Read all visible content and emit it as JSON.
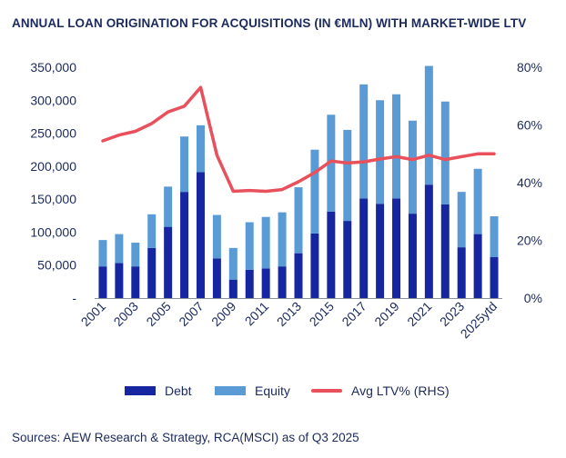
{
  "chart_data": {
    "type": "bar",
    "stacked": true,
    "title": "ANNUAL LOAN ORIGINATION FOR ACQUISITIONS (IN €MLN) WITH MARKET-WIDE LTV",
    "categories": [
      "2001",
      "2002",
      "2003",
      "2004",
      "2005",
      "2006",
      "2007",
      "2008",
      "2009",
      "2010",
      "2011",
      "2012",
      "2013",
      "2014",
      "2015",
      "2016",
      "2017",
      "2018",
      "2019",
      "2020",
      "2021",
      "2022",
      "2023",
      "2024",
      "2025ytd"
    ],
    "x_tick_labels": [
      "2001",
      "2003",
      "2005",
      "2007",
      "2009",
      "2011",
      "2013",
      "2015",
      "2017",
      "2019",
      "2021",
      "2023",
      "2025ytd"
    ],
    "series": [
      {
        "name": "Debt",
        "type": "bar",
        "color": "#1526a0",
        "values": [
          48000,
          53000,
          48000,
          76000,
          108000,
          161000,
          191000,
          60000,
          28000,
          43000,
          45000,
          48000,
          68000,
          98000,
          131000,
          117000,
          151000,
          143000,
          151000,
          128000,
          172000,
          142000,
          77000,
          97000,
          62000
        ]
      },
      {
        "name": "Equity",
        "type": "bar",
        "color": "#5b9bd5",
        "values": [
          40000,
          44000,
          36000,
          51000,
          61000,
          84000,
          71000,
          66000,
          48000,
          72000,
          78000,
          82000,
          100000,
          127000,
          147000,
          138000,
          173000,
          157000,
          158000,
          141000,
          180000,
          156000,
          84000,
          99000,
          62000
        ]
      },
      {
        "name": "Avg LTV% (RHS)",
        "type": "line",
        "axis": "right",
        "color": "#e8505b",
        "values": [
          54.5,
          56.5,
          57.8,
          60.5,
          64.5,
          66.5,
          73.0,
          49.5,
          37.0,
          37.3,
          37.0,
          37.6,
          40.3,
          43.5,
          47.5,
          46.8,
          47.2,
          48.2,
          49.0,
          48.0,
          49.5,
          48.0,
          49.0,
          50.0,
          50.0
        ]
      }
    ],
    "y_left": {
      "min": 0,
      "max": 350000,
      "ticks": [
        "-",
        "50,000",
        "100,000",
        "150,000",
        "200,000",
        "250,000",
        "300,000",
        "350,000"
      ]
    },
    "y_right": {
      "min": 0,
      "max": 80,
      "ticks": [
        "0%",
        "20%",
        "40%",
        "60%",
        "80%"
      ]
    },
    "legend_position": "bottom",
    "grid": false,
    "source": "Sources: AEW Research & Strategy, RCA(MSCI) as of Q3 2025"
  }
}
